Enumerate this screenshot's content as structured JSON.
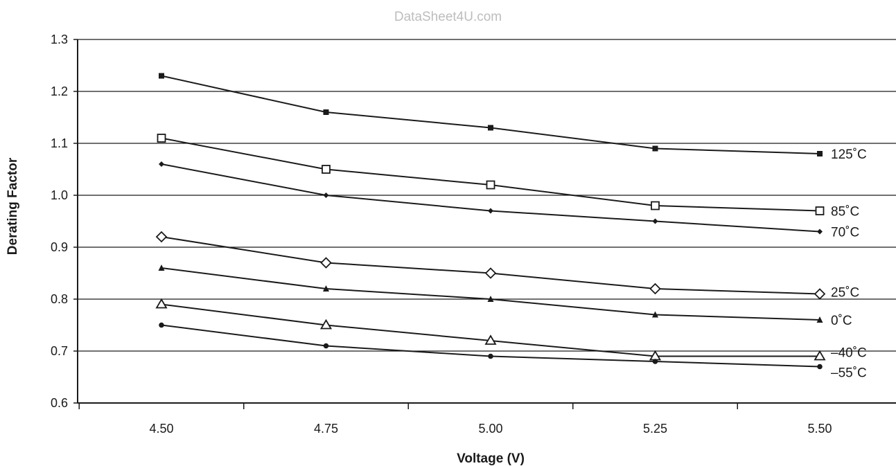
{
  "watermark": "DataSheet4U.com",
  "chart_data": {
    "type": "line",
    "title": "",
    "xlabel": "Voltage (V)",
    "ylabel": "Derating Factor",
    "categories": [
      "4.50",
      "4.75",
      "5.00",
      "5.25",
      "5.50"
    ],
    "ylim": [
      0.6,
      1.3
    ],
    "yticks": [
      "0.6",
      "0.7",
      "0.8",
      "0.9",
      "1.0",
      "1.1",
      "1.2",
      "1.3"
    ],
    "grid": true,
    "series": [
      {
        "name": "125˚C",
        "marker": "filled-square",
        "values": [
          1.23,
          1.16,
          1.13,
          1.09,
          1.08
        ]
      },
      {
        "name": "85˚C",
        "marker": "open-square",
        "values": [
          1.11,
          1.05,
          1.02,
          0.98,
          0.97
        ]
      },
      {
        "name": "70˚C",
        "marker": "filled-diamond",
        "values": [
          1.06,
          1.0,
          0.97,
          0.95,
          0.93
        ]
      },
      {
        "name": "25˚C",
        "marker": "open-diamond",
        "values": [
          0.92,
          0.87,
          0.85,
          0.82,
          0.81
        ]
      },
      {
        "name": "0˚C",
        "marker": "filled-triangle",
        "values": [
          0.86,
          0.82,
          0.8,
          0.77,
          0.76
        ]
      },
      {
        "name": "–40˚C",
        "marker": "open-triangle",
        "values": [
          0.79,
          0.75,
          0.72,
          0.69,
          0.69
        ]
      },
      {
        "name": "–55˚C",
        "marker": "filled-circle",
        "values": [
          0.75,
          0.71,
          0.69,
          0.68,
          0.67
        ]
      }
    ],
    "colors": {
      "line": "#1a1a1a",
      "grid": "#1a1a1a",
      "background": "#ffffff"
    }
  }
}
